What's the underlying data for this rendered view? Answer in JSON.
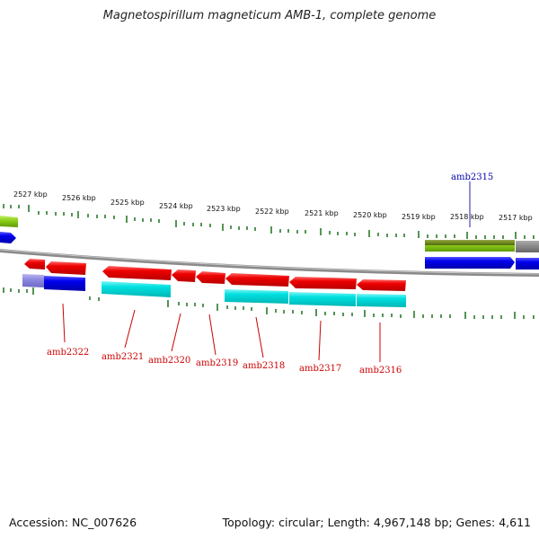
{
  "title": "Magnetospirillum magneticum AMB-1, complete genome",
  "footer": {
    "accession": "Accession: NC_007626",
    "summary": "Topology: circular; Length: 4,967,148 bp; Genes: 4,611"
  },
  "colors": {
    "forward_cds": "#ee0000",
    "forward_gene": "#00d8d8",
    "reverse_cds": "#0000dd",
    "reverse_gene": "#8fd11a",
    "ticks": "#2a7a2a",
    "backbone": "#888888",
    "label_red": "#cc0000",
    "label_blue": "#0000aa"
  },
  "kbp_labels": [
    "2527 kbp",
    "2526 kbp",
    "2525 kbp",
    "2524 kbp",
    "2523 kbp",
    "2522 kbp",
    "2521 kbp",
    "2520 kbp",
    "2519 kbp",
    "2518 kbp",
    "2517 kbp"
  ],
  "gene_labels": [
    {
      "name": "amb2315",
      "color": "blue"
    },
    {
      "name": "amb2316",
      "color": "red"
    },
    {
      "name": "amb2317",
      "color": "red"
    },
    {
      "name": "amb2318",
      "color": "red"
    },
    {
      "name": "amb2319",
      "color": "red"
    },
    {
      "name": "amb2320",
      "color": "red"
    },
    {
      "name": "amb2321",
      "color": "red"
    },
    {
      "name": "amb2322",
      "color": "red"
    }
  ]
}
